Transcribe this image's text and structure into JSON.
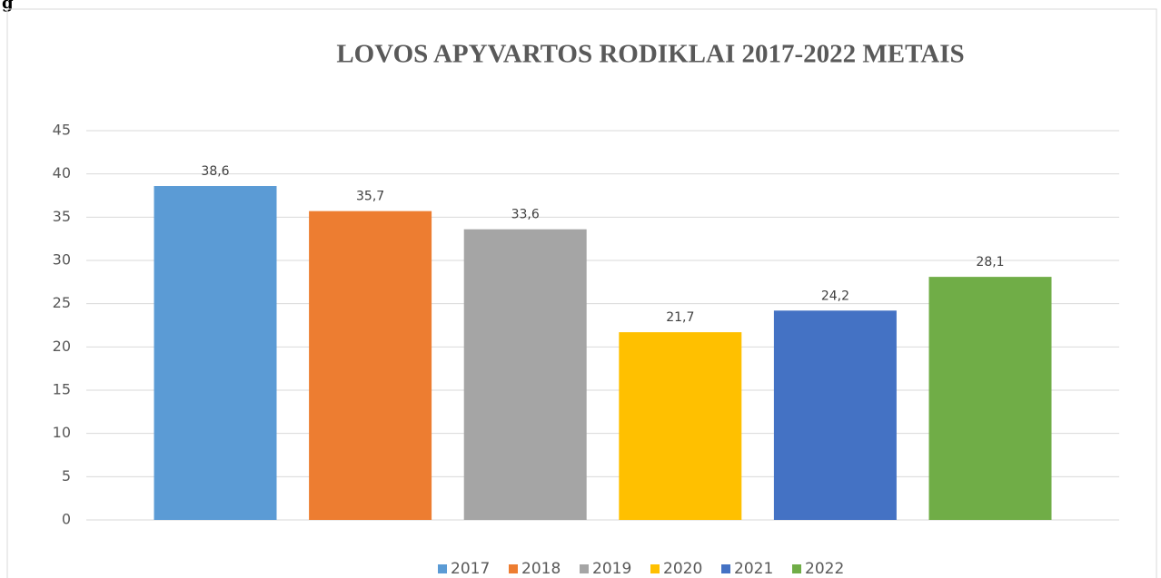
{
  "corner_text": "g",
  "chart_data": {
    "type": "bar",
    "title": "LOVOS APYVARTOS RODIKLAI 2017-2022 METAIS",
    "categories": [
      null
    ],
    "series": [
      {
        "name": "2017",
        "color": "#5b9bd5",
        "values": [
          38.6
        ],
        "value_labels": [
          "38,6"
        ]
      },
      {
        "name": "2018",
        "color": "#ed7d31",
        "values": [
          35.7
        ],
        "value_labels": [
          "35,7"
        ]
      },
      {
        "name": "2019",
        "color": "#a5a5a5",
        "values": [
          33.6
        ],
        "value_labels": [
          "33,6"
        ]
      },
      {
        "name": "2020",
        "color": "#ffc000",
        "values": [
          21.7
        ],
        "value_labels": [
          "21,7"
        ]
      },
      {
        "name": "2021",
        "color": "#4472c4",
        "values": [
          24.2
        ],
        "value_labels": [
          "24,2"
        ]
      },
      {
        "name": "2022",
        "color": "#70ad47",
        "values": [
          28.1
        ],
        "value_labels": [
          "28,1"
        ]
      }
    ],
    "ylim": [
      0,
      45
    ],
    "yticks": [
      0,
      5,
      10,
      15,
      20,
      25,
      30,
      35,
      40,
      45
    ],
    "grid": true,
    "legend": "bottom"
  }
}
